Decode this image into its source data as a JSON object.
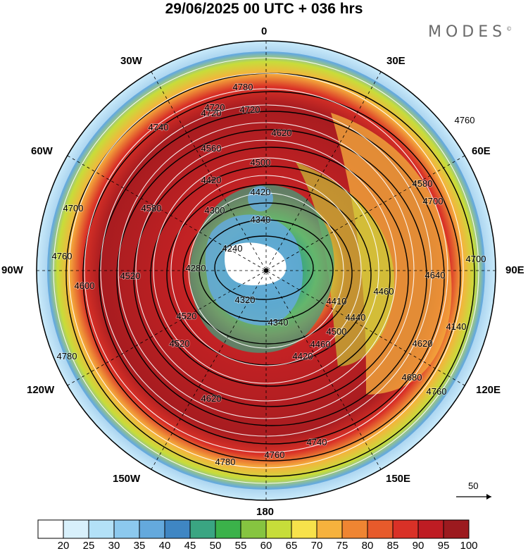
{
  "header": {
    "title": "29/06/2025  00 UTC  + 036 hrs",
    "brand": "MODES",
    "brand_mark": "©"
  },
  "map": {
    "projection": "north-polar-stereographic",
    "background": "wind speed (shaded) with 500 hPa geopotential height contours (black) and streamlines (white)",
    "longitude_labels": {
      "top": "0",
      "top_right": "30E",
      "right_upper": "60E",
      "right": "90E",
      "right_lower": "120E",
      "bottom_right": "150E",
      "bottom": "180",
      "bottom_left": "150W",
      "left_lower": "120W",
      "left": "90W",
      "left_upper": "60W",
      "top_left": "30W"
    },
    "contour_labels": [
      "4780",
      "4720",
      "4720",
      "4740",
      "4760",
      "4620",
      "4560",
      "4500",
      "4420",
      "4420",
      "4340",
      "4300",
      "4240",
      "4280",
      "4320",
      "4340",
      "4410",
      "4440",
      "4460",
      "4420",
      "4460",
      "4500",
      "4520",
      "4580",
      "4580",
      "4640",
      "4700",
      "4700",
      "4760",
      "4620",
      "4700",
      "4780",
      "4760",
      "4520",
      "4520",
      "4620",
      "4740",
      "4760",
      "4780",
      "4600",
      "4680",
      "4720",
      "4140"
    ],
    "wind_scale": {
      "label": "50"
    }
  },
  "colorbar": {
    "ticks": [
      "20",
      "25",
      "30",
      "35",
      "40",
      "45",
      "50",
      "55",
      "60",
      "65",
      "70",
      "75",
      "80",
      "85",
      "90",
      "95",
      "100"
    ],
    "colors": [
      "#ffffff",
      "#d8f0fb",
      "#b3e1f7",
      "#8cc9ee",
      "#64a9dd",
      "#3f86c3",
      "#3aa582",
      "#3bb24a",
      "#86c440",
      "#c7dd3a",
      "#f7e24b",
      "#f6b23d",
      "#ef8532",
      "#e75a2b",
      "#d93127",
      "#be1c23",
      "#9c1a1f"
    ]
  },
  "colors": {
    "contour": "#000000",
    "streamline": "#ffffff"
  }
}
